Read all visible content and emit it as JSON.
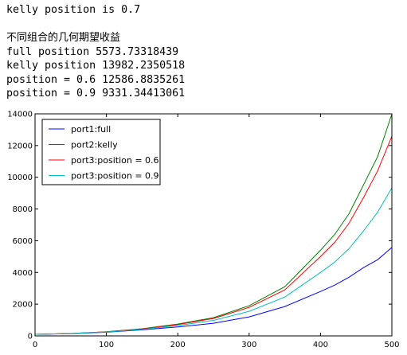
{
  "output": {
    "kelly_line": "kelly position is 0.7",
    "heading": "不同组合的几何期望收益",
    "full_line": "full position 5573.73318439",
    "kelly_value_line": "kelly position 13982.2350518",
    "pos06_line": "position = 0.6 12586.8835261",
    "pos09_line": "position = 0.9 9331.34413061"
  },
  "chart_data": {
    "type": "line",
    "xlabel": "",
    "ylabel": "",
    "xlim": [
      0,
      500
    ],
    "ylim": [
      0,
      14000
    ],
    "x_ticks": [
      "0",
      "100",
      "200",
      "300",
      "400",
      "500"
    ],
    "y_ticks": [
      "0",
      "2000",
      "4000",
      "6000",
      "8000",
      "10000",
      "12000",
      "14000"
    ],
    "legend_position": "upper-left",
    "x": [
      0,
      50,
      100,
      150,
      200,
      250,
      300,
      350,
      400,
      420,
      440,
      460,
      480,
      500
    ],
    "series": [
      {
        "name": "port1:full",
        "color": "#0000ff",
        "values": [
          100,
          140,
          230,
          380,
          560,
          800,
          1200,
          1850,
          2800,
          3200,
          3700,
          4300,
          4800,
          5574
        ]
      },
      {
        "name": "port2:kelly",
        "color": "#008000",
        "values": [
          100,
          150,
          260,
          450,
          750,
          1150,
          1900,
          3100,
          5400,
          6400,
          7700,
          9500,
          11300,
          13982
        ]
      },
      {
        "name": "port3:position = 0.6",
        "color": "#ff0000",
        "values": [
          100,
          150,
          255,
          440,
          720,
          1100,
          1800,
          2900,
          5000,
          5900,
          7100,
          8700,
          10400,
          12587
        ]
      },
      {
        "name": "port3:position = 0.9",
        "color": "#00bfbf",
        "values": [
          100,
          145,
          245,
          410,
          650,
          980,
          1550,
          2450,
          4000,
          4650,
          5500,
          6600,
          7800,
          9331
        ]
      }
    ]
  }
}
